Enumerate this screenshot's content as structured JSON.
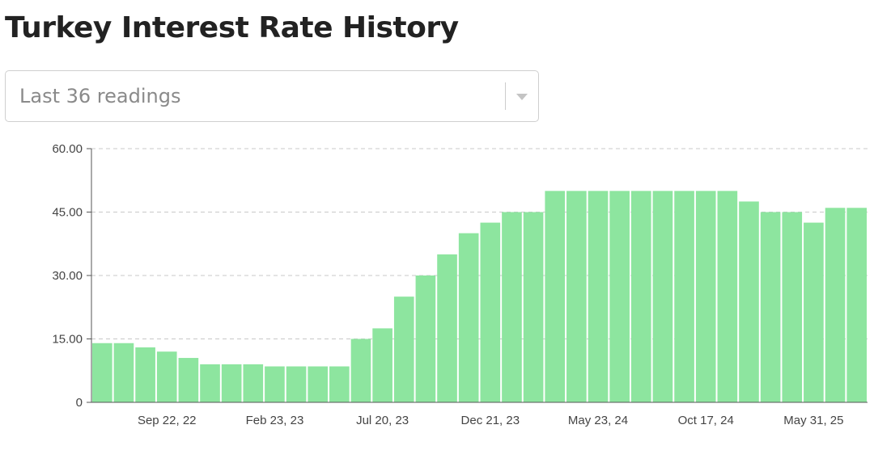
{
  "title": "Turkey Interest Rate History",
  "range_select": {
    "value": "Last 36 readings"
  },
  "colors": {
    "bar": "#8de59f",
    "grid": "#c8c8c8",
    "axis": "#555555"
  },
  "chart_data": {
    "type": "bar",
    "title": "",
    "xlabel": "",
    "ylabel": "",
    "ylim": [
      0,
      60
    ],
    "y_ticks": [
      "0",
      "15.00",
      "30.00",
      "45.00",
      "60.00"
    ],
    "x_tick_labels": [
      {
        "index": 3,
        "label": "Sep 22, 22"
      },
      {
        "index": 8,
        "label": "Feb 23, 23"
      },
      {
        "index": 13,
        "label": "Jul 20, 23"
      },
      {
        "index": 18,
        "label": "Dec 21, 23"
      },
      {
        "index": 23,
        "label": "May 23, 24"
      },
      {
        "index": 28,
        "label": "Oct 17, 24"
      },
      {
        "index": 33,
        "label": "May 31, 25"
      }
    ],
    "grid": true,
    "values": [
      14,
      14,
      13,
      12,
      10.5,
      9,
      9,
      9,
      8.5,
      8.5,
      8.5,
      8.5,
      15,
      17.5,
      25,
      30,
      35,
      40,
      42.5,
      45,
      45,
      50,
      50,
      50,
      50,
      50,
      50,
      50,
      50,
      50,
      47.5,
      45,
      45,
      42.5,
      46,
      46
    ]
  }
}
